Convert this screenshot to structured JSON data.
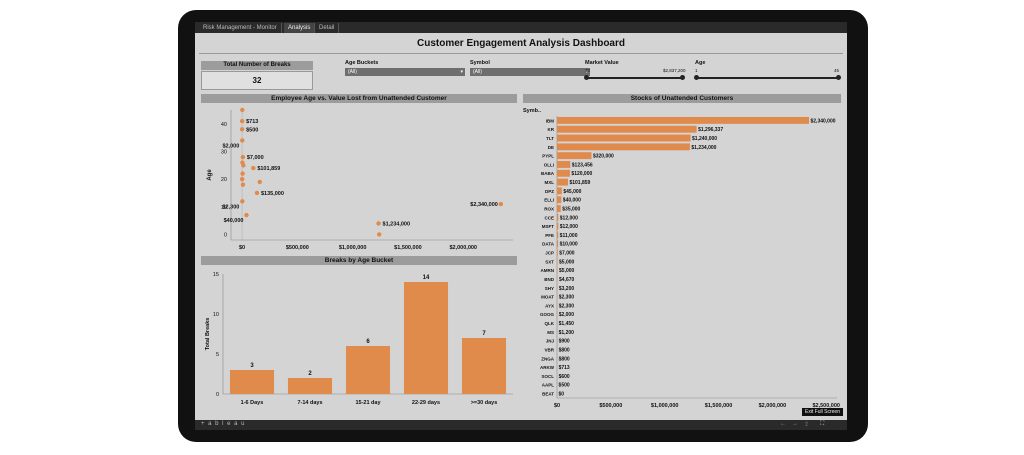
{
  "tabs": [
    "Risk Management - Monitor",
    "Analysis",
    "Detail"
  ],
  "active_tab": 1,
  "dashboard_title": "Customer Engagement Analysis Dashboard",
  "kpi": {
    "label": "Total Number of Breaks",
    "value": "32"
  },
  "filters": {
    "age_buckets": {
      "label": "Age Buckets",
      "value": "(All)"
    },
    "symbol": {
      "label": "Symbol",
      "value": "(All)"
    },
    "market_value": {
      "label": "Market Value",
      "min": "$0",
      "max": "$2,837,200"
    },
    "age": {
      "label": "Age",
      "min": "1",
      "max": "45"
    }
  },
  "colors": {
    "accent": "#e08a4c",
    "panel_header": "#9c9c9c",
    "background": "#d4d4d4"
  },
  "footer": {
    "brand": "+ a b l e a u",
    "exit": "Exit Full Screen"
  },
  "icons": [
    "undo-icon",
    "redo-icon",
    "share-icon",
    "fullscreen-icon"
  ],
  "chart_data": [
    {
      "type": "scatter",
      "title": "Employee Age vs. Value Lost from Unattended Customer",
      "xlabel": "Market Value",
      "ylabel": "Age",
      "xlim": [
        -100000,
        2450000
      ],
      "ylim": [
        -2,
        45
      ],
      "xticks": [
        "$0",
        "$500,000",
        "$1,000,000",
        "$1,500,000",
        "$2,000,000"
      ],
      "xtick_values": [
        0,
        500000,
        1000000,
        1500000,
        2000000
      ],
      "yticks": [
        0,
        10,
        20,
        30,
        40
      ],
      "points": [
        {
          "x": 2000,
          "y": 45,
          "label": ""
        },
        {
          "x": 713,
          "y": 41,
          "label": "$713"
        },
        {
          "x": 500,
          "y": 38,
          "label": "$500"
        },
        {
          "x": 2000,
          "y": 34,
          "label": "$2,000"
        },
        {
          "x": 7000,
          "y": 28,
          "label": "$7,000"
        },
        {
          "x": 3000,
          "y": 26,
          "label": ""
        },
        {
          "x": 12000,
          "y": 25,
          "label": ""
        },
        {
          "x": 101859,
          "y": 24,
          "label": "$101,859"
        },
        {
          "x": 5000,
          "y": 22,
          "label": ""
        },
        {
          "x": 1000,
          "y": 20,
          "label": ""
        },
        {
          "x": 8000,
          "y": 18,
          "label": ""
        },
        {
          "x": 160000,
          "y": 19,
          "label": ""
        },
        {
          "x": 135000,
          "y": 15,
          "label": "$135,000"
        },
        {
          "x": 2300,
          "y": 12,
          "label": "$2,300"
        },
        {
          "x": 40000,
          "y": 7,
          "label": "$40,000"
        },
        {
          "x": 1234000,
          "y": 4,
          "label": "$1,234,000"
        },
        {
          "x": 1240000,
          "y": 0,
          "label": ""
        },
        {
          "x": 2340000,
          "y": 11,
          "label": "$2,340,000"
        }
      ]
    },
    {
      "type": "bar",
      "title": "Breaks by Age Bucket",
      "xlabel": "",
      "ylabel": "Total Breaks",
      "categories": [
        "1-6 Days",
        "7-14 days",
        "15-21 day",
        "22-29 days",
        ">=30 days"
      ],
      "values": [
        3,
        2,
        6,
        14,
        7
      ],
      "ylim": [
        0,
        15
      ],
      "yticks": [
        0,
        5,
        10,
        15
      ]
    },
    {
      "type": "bar",
      "orientation": "horizontal",
      "title": "Stocks of Unattended Customers",
      "column_header": "Symb..",
      "xlim": [
        0,
        2600000
      ],
      "xticks": [
        "$0",
        "$500,000",
        "$1,000,000",
        "$1,500,000",
        "$2,000,000",
        "$2,500,000"
      ],
      "xtick_values": [
        0,
        500000,
        1000000,
        1500000,
        2000000,
        2500000
      ],
      "categories": [
        "IBM",
        "KR",
        "TLT",
        "DE",
        "PYPL",
        "OLLI",
        "BABA",
        "MXL",
        "DPZ",
        "ELLI",
        "ROX",
        "CCE",
        "MSFT",
        "PFE",
        "DATA",
        "JCP",
        "SXT",
        "AMRN",
        "BND",
        "SHY",
        "MOAT",
        "AYX",
        "GOOG",
        "QLK",
        "MS",
        "JNJ",
        "VBR",
        "ZNGA",
        "ARKW",
        "SOCL",
        "AAPL",
        "BEAT"
      ],
      "values": [
        2340000,
        1296337,
        1240000,
        1234000,
        320000,
        123456,
        120000,
        101859,
        45000,
        40000,
        35000,
        12000,
        12000,
        11000,
        10000,
        7000,
        5000,
        5000,
        4670,
        3200,
        2300,
        2300,
        2000,
        1450,
        1200,
        900,
        800,
        800,
        713,
        600,
        500,
        0
      ],
      "value_labels": [
        "$2,340,000",
        "$1,296,337",
        "$1,240,000",
        "$1,234,000",
        "$320,000",
        "$123,456",
        "$120,000",
        "$101,859",
        "$45,000",
        "$40,000",
        "$35,000",
        "$12,000",
        "$12,000",
        "$11,000",
        "$10,000",
        "$7,000",
        "$5,000",
        "$5,000",
        "$4,670",
        "$3,200",
        "$2,300",
        "$2,300",
        "$2,000",
        "$1,450",
        "$1,200",
        "$900",
        "$800",
        "$800",
        "$713",
        "$600",
        "$500",
        "$0"
      ]
    }
  ]
}
